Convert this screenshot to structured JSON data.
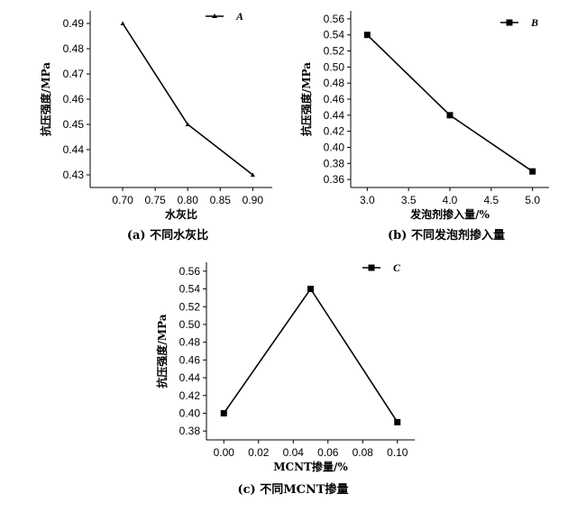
{
  "chart_data": [
    {
      "type": "line",
      "x": [
        0.7,
        0.8,
        0.9
      ],
      "series": [
        {
          "name": "A",
          "values": [
            0.49,
            0.45,
            0.43
          ],
          "marker": "triangle"
        }
      ],
      "xlabel": "水灰比",
      "ylabel": "抗压强度/MPa",
      "xlim": [
        0.65,
        0.93
      ],
      "ylim": [
        0.425,
        0.495
      ],
      "xticks": [
        "0.70",
        "0.75",
        "0.80",
        "0.85",
        "0.90"
      ],
      "yticks": [
        "0.43",
        "0.44",
        "0.45",
        "0.46",
        "0.47",
        "0.48",
        "0.49"
      ],
      "legend": "top-right",
      "grid": false,
      "caption": "(a) 不同水灰比"
    },
    {
      "type": "line",
      "x": [
        3.0,
        4.0,
        5.0
      ],
      "series": [
        {
          "name": "B",
          "values": [
            0.54,
            0.44,
            0.37
          ],
          "marker": "square"
        }
      ],
      "xlabel": "发泡剂掺入量/%",
      "ylabel": "抗压强度/MPa",
      "xlim": [
        2.8,
        5.2
      ],
      "ylim": [
        0.35,
        0.57
      ],
      "xticks": [
        "3.0",
        "3.5",
        "4.0",
        "4.5",
        "5.0"
      ],
      "yticks": [
        "0.36",
        "0.38",
        "0.40",
        "0.42",
        "0.44",
        "0.46",
        "0.48",
        "0.50",
        "0.52",
        "0.54",
        "0.56"
      ],
      "legend": "top-right",
      "grid": false,
      "caption": "(b) 不同发泡剂掺入量"
    },
    {
      "type": "line",
      "x": [
        0.0,
        0.05,
        0.1
      ],
      "series": [
        {
          "name": "C",
          "values": [
            0.4,
            0.54,
            0.39
          ],
          "marker": "square"
        }
      ],
      "xlabel": "MCNT掺量/%",
      "ylabel": "抗压强度/MPa",
      "xlim": [
        -0.01,
        0.11
      ],
      "ylim": [
        0.37,
        0.57
      ],
      "xticks": [
        "0.00",
        "0.02",
        "0.04",
        "0.06",
        "0.08",
        "0.10"
      ],
      "yticks": [
        "0.38",
        "0.40",
        "0.42",
        "0.44",
        "0.46",
        "0.48",
        "0.50",
        "0.52",
        "0.54",
        "0.56"
      ],
      "legend": "top-right",
      "grid": false,
      "caption": "(c) 不同MCNT掺量"
    }
  ]
}
